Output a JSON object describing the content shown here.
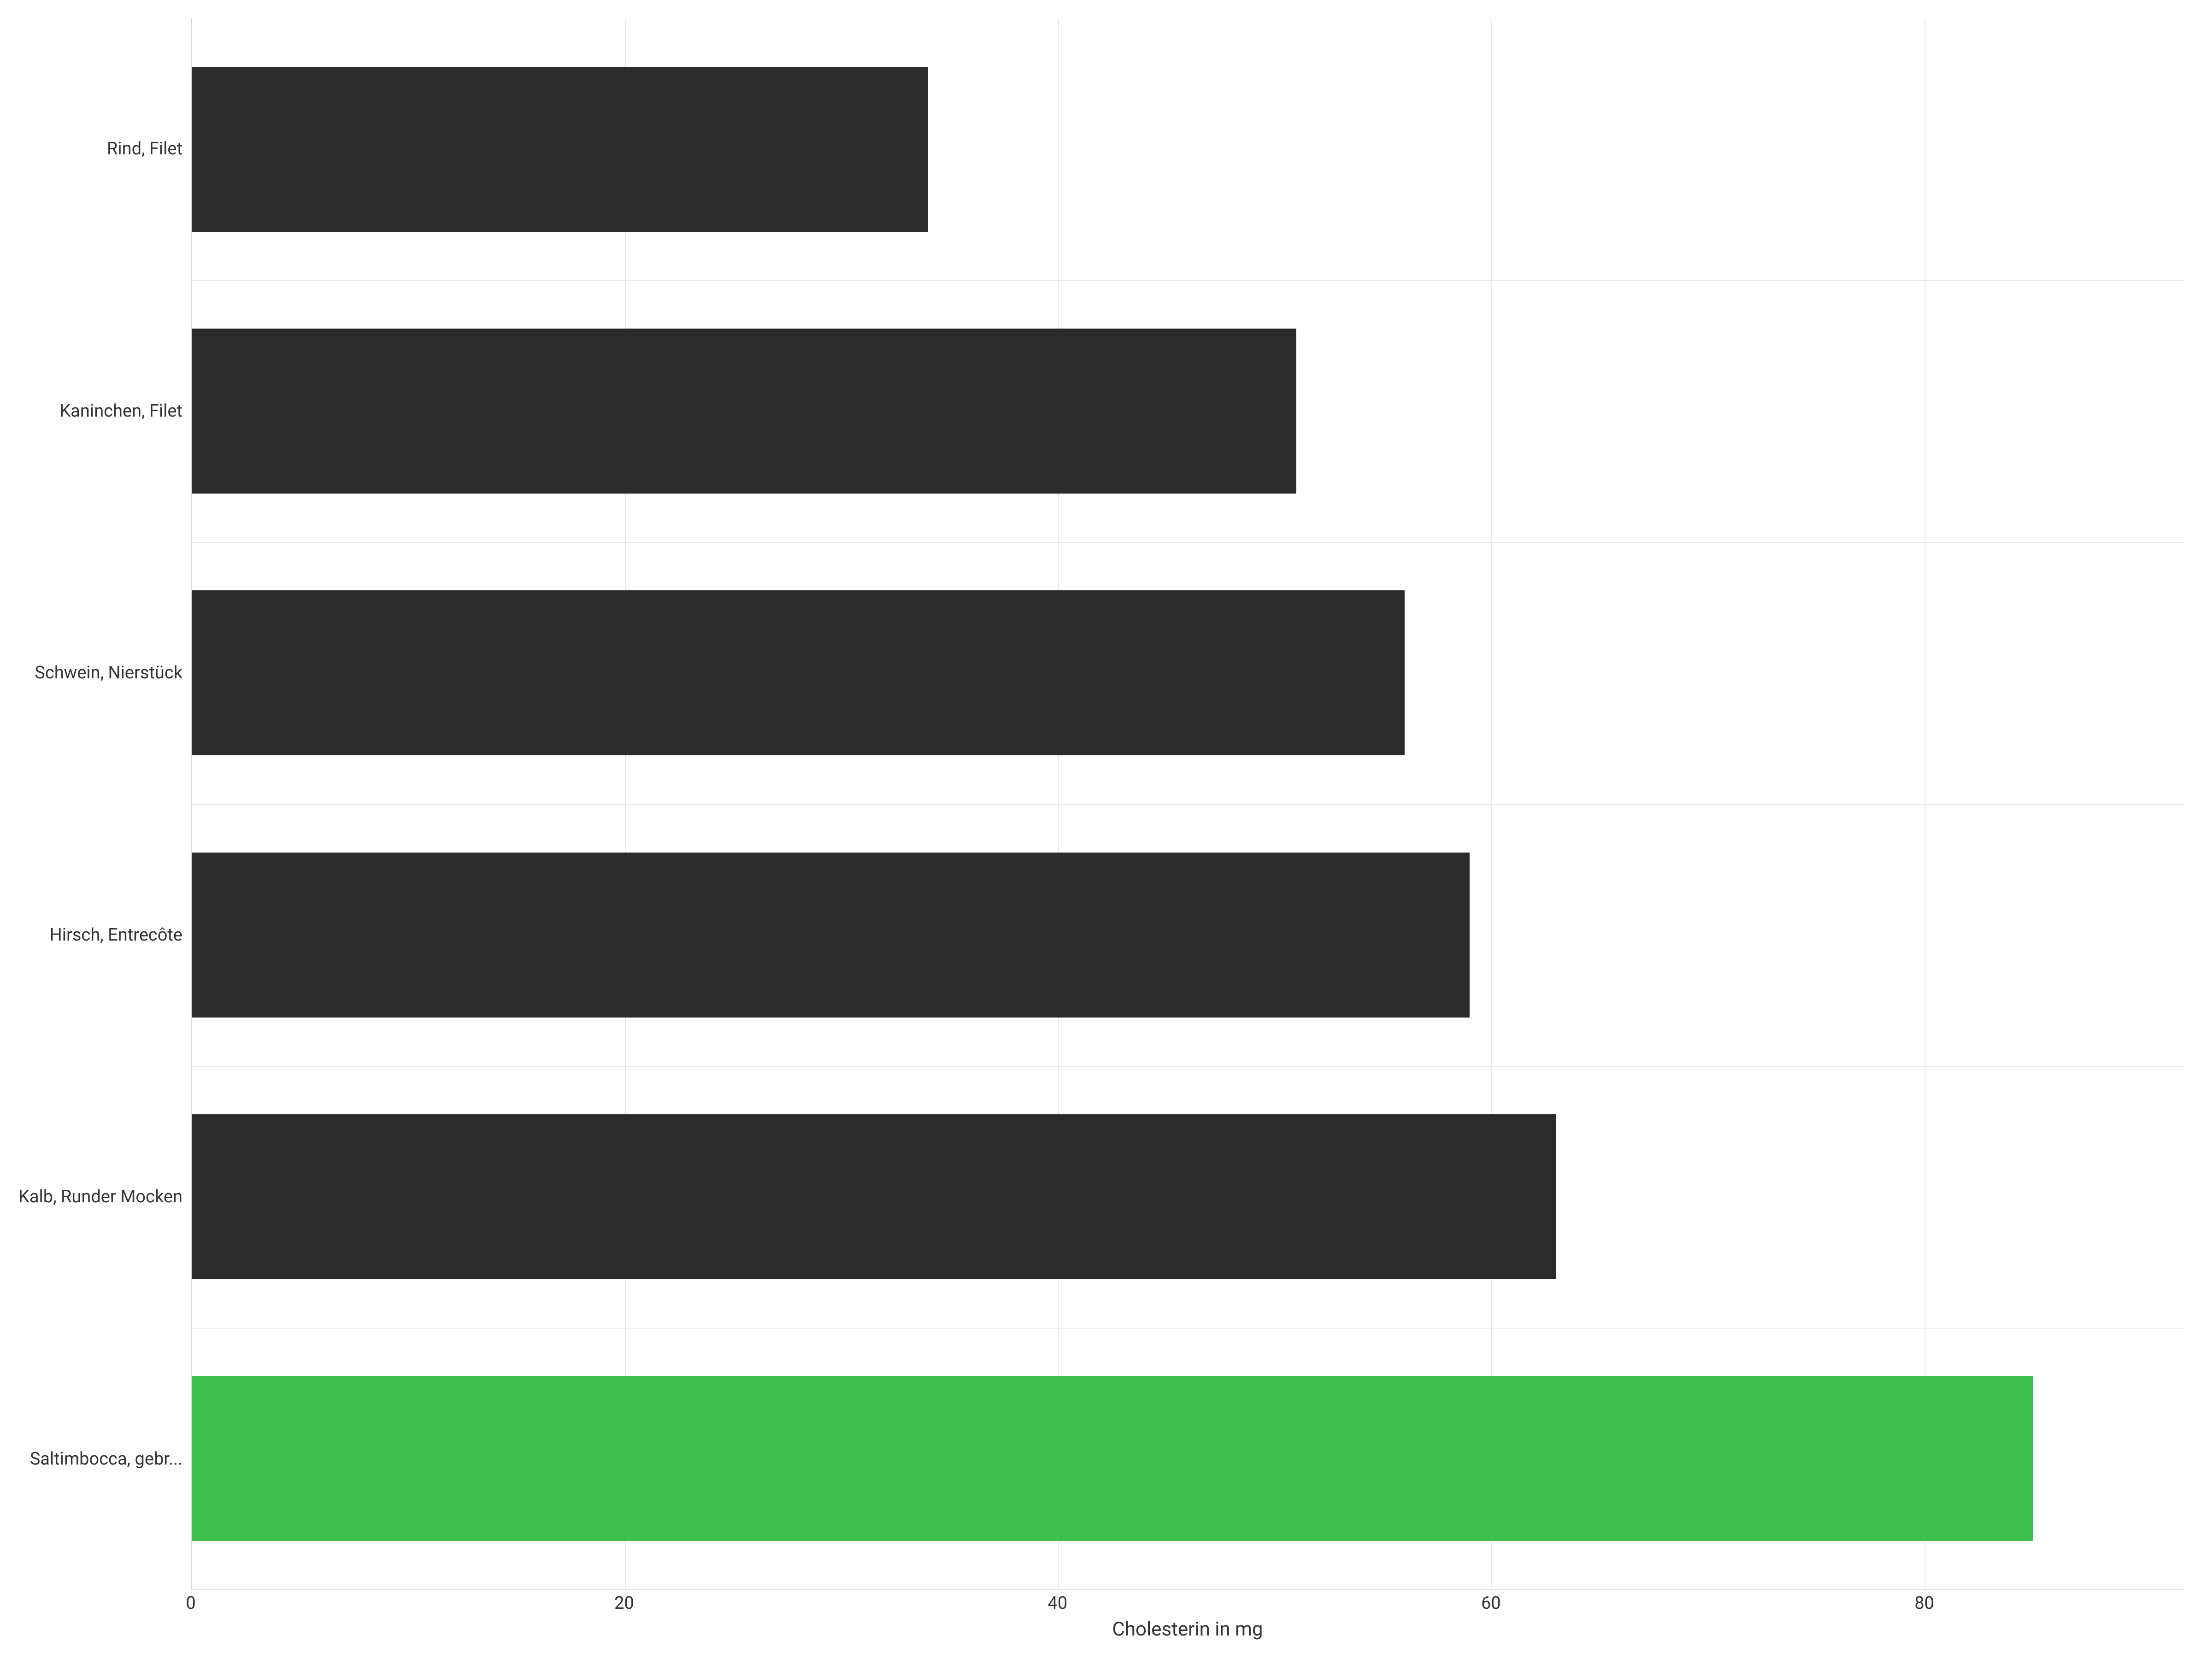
{
  "chart": {
    "type": "bar-horizontal",
    "x_axis": {
      "title": "Cholesterin in mg",
      "min": 0,
      "max": 92,
      "ticks": [
        0,
        20,
        40,
        60,
        80
      ],
      "title_fontsize": 42,
      "tick_fontsize": 38
    },
    "y_axis": {
      "label_fontsize": 38
    },
    "grid": {
      "v_positions_pct": [
        21.74,
        43.48,
        65.22,
        86.96
      ],
      "h_positions_pct": [
        16.67,
        33.33,
        50.0,
        66.67,
        83.33
      ],
      "color": "#e8e8e8"
    },
    "colors": {
      "bar_default": "#2b2b2b",
      "bar_highlight": "#3fbf4d",
      "axis_line": "#d9d9d9",
      "text": "#333333",
      "background": "#ffffff"
    },
    "bar_height_pct": 10.5,
    "items": [
      {
        "label": "Rind, Filet",
        "value": 34,
        "width_pct": 36.96,
        "color": "#2b2b2b",
        "highlight": false
      },
      {
        "label": "Kaninchen, Filet",
        "value": 51,
        "width_pct": 55.43,
        "color": "#2b2b2b",
        "highlight": false
      },
      {
        "label": "Schwein, Nierstück",
        "value": 56,
        "width_pct": 60.87,
        "color": "#2b2b2b",
        "highlight": false
      },
      {
        "label": "Hirsch, Entrecôte",
        "value": 59,
        "width_pct": 64.13,
        "color": "#2b2b2b",
        "highlight": false
      },
      {
        "label": "Kalb, Runder Mocken",
        "value": 63,
        "width_pct": 68.48,
        "color": "#2b2b2b",
        "highlight": false
      },
      {
        "label": "Saltimbocca, gebr...",
        "value": 85,
        "width_pct": 92.39,
        "color": "#3fbf4d",
        "highlight": true
      }
    ]
  }
}
